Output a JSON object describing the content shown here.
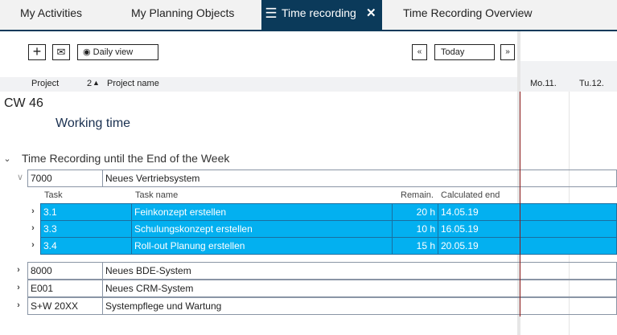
{
  "tabs": [
    {
      "label": "My Activities"
    },
    {
      "label": "My Planning Objects"
    },
    {
      "label": "Time recording",
      "active": true
    },
    {
      "label": "Time Recording Overview"
    }
  ],
  "toolbar": {
    "daily_view": "Daily view",
    "prev": "«",
    "today": "Today",
    "next": "»"
  },
  "columns": {
    "project": "Project",
    "sort_index": "2",
    "project_name": "Project name"
  },
  "days": [
    "Mo.11.",
    "Tu.12."
  ],
  "week": "CW 46",
  "working_time": "Working time",
  "group_title": "Time Recording until the End of the Week",
  "task_columns": {
    "task": "Task",
    "task_name": "Task name",
    "remain": "Remain.",
    "calc_end": "Calculated end"
  },
  "expanded_project": {
    "id": "7000",
    "name": "Neues Vertriebsystem"
  },
  "tasks": [
    {
      "id": "3.1",
      "name": "Feinkonzept erstellen",
      "remain": "20 h",
      "end": "14.05.19"
    },
    {
      "id": "3.3",
      "name": "Schulungskonzept erstellen",
      "remain": "10 h",
      "end": "16.05.19"
    },
    {
      "id": "3.4",
      "name": "Roll-out Planung erstellen",
      "remain": "15 h",
      "end": "20.05.19"
    }
  ],
  "projects": [
    {
      "id": "8000",
      "name": "Neues BDE-System"
    },
    {
      "id": "E001",
      "name": "Neues CRM-System"
    },
    {
      "id": "S+W 20XX",
      "name": "Systempflege und Wartung"
    }
  ],
  "colors": {
    "tab_active": "#0b3a5a",
    "selected_row": "#03b0f0",
    "today_line": "#8b1a1a"
  }
}
